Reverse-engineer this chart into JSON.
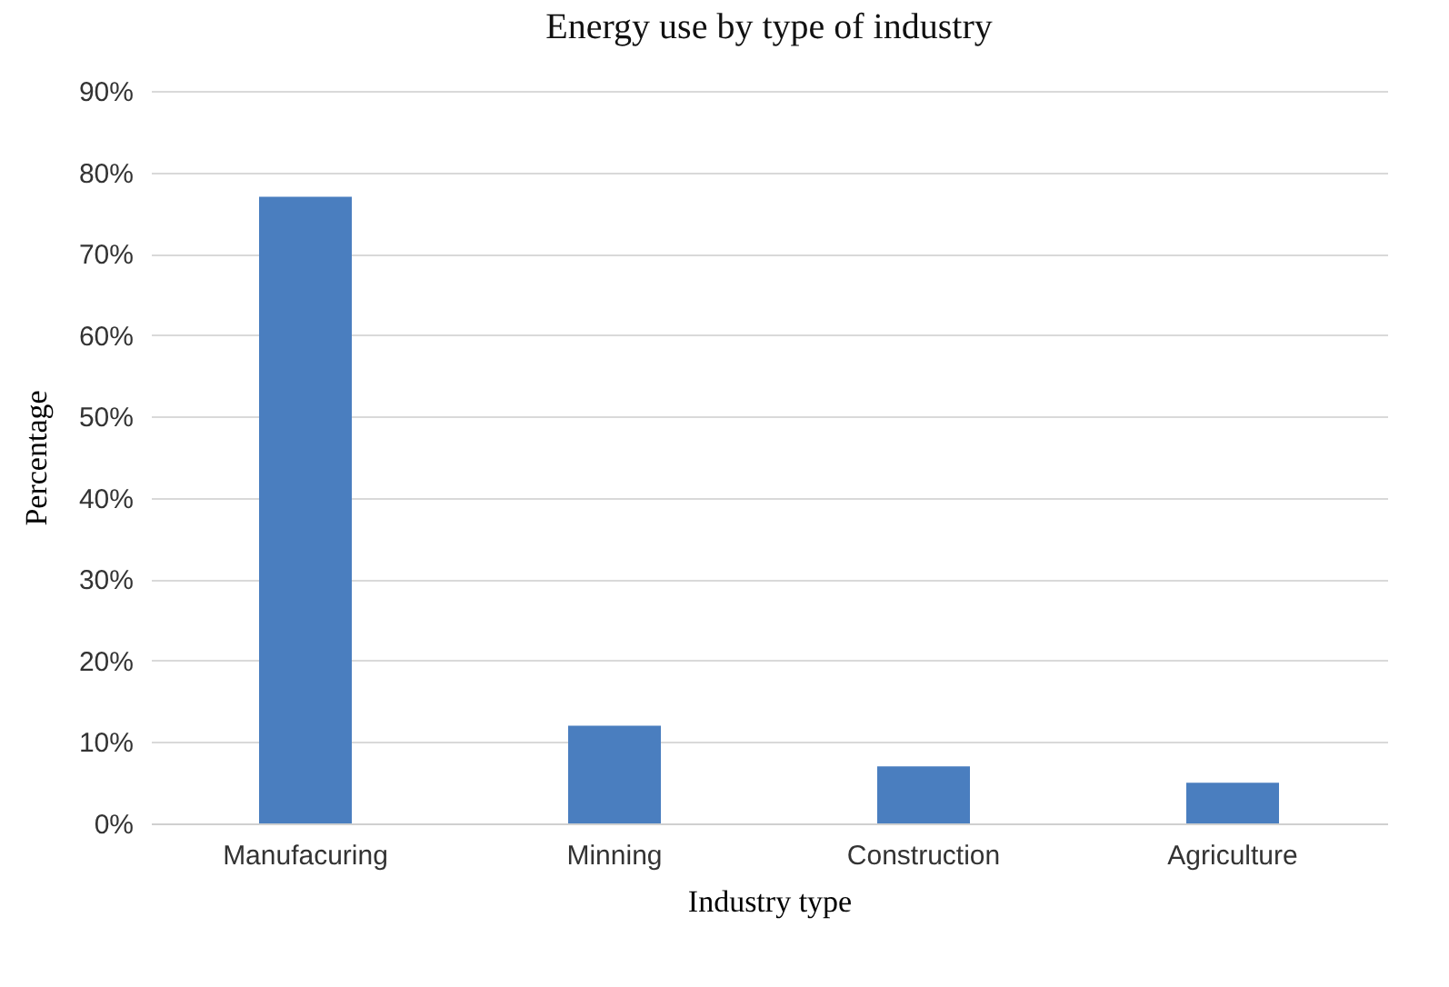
{
  "chart_data": {
    "type": "bar",
    "title": "Energy use by type of industry",
    "xlabel": "Industry type",
    "ylabel": "Percentage",
    "categories": [
      "Manufacuring",
      "Minning",
      "Construction",
      "Agriculture"
    ],
    "values": [
      77,
      12,
      7,
      5
    ],
    "color": "#4a7ebf",
    "ylim": [
      0,
      90
    ],
    "yticks": [
      {
        "value": 0,
        "label": "0%"
      },
      {
        "value": 10,
        "label": "10%"
      },
      {
        "value": 20,
        "label": "20%"
      },
      {
        "value": 30,
        "label": "30%"
      },
      {
        "value": 40,
        "label": "40%"
      },
      {
        "value": 50,
        "label": "50%"
      },
      {
        "value": 60,
        "label": "60%"
      },
      {
        "value": 70,
        "label": "70%"
      },
      {
        "value": 80,
        "label": "80%"
      },
      {
        "value": 90,
        "label": "90%"
      }
    ],
    "grid": "y"
  }
}
